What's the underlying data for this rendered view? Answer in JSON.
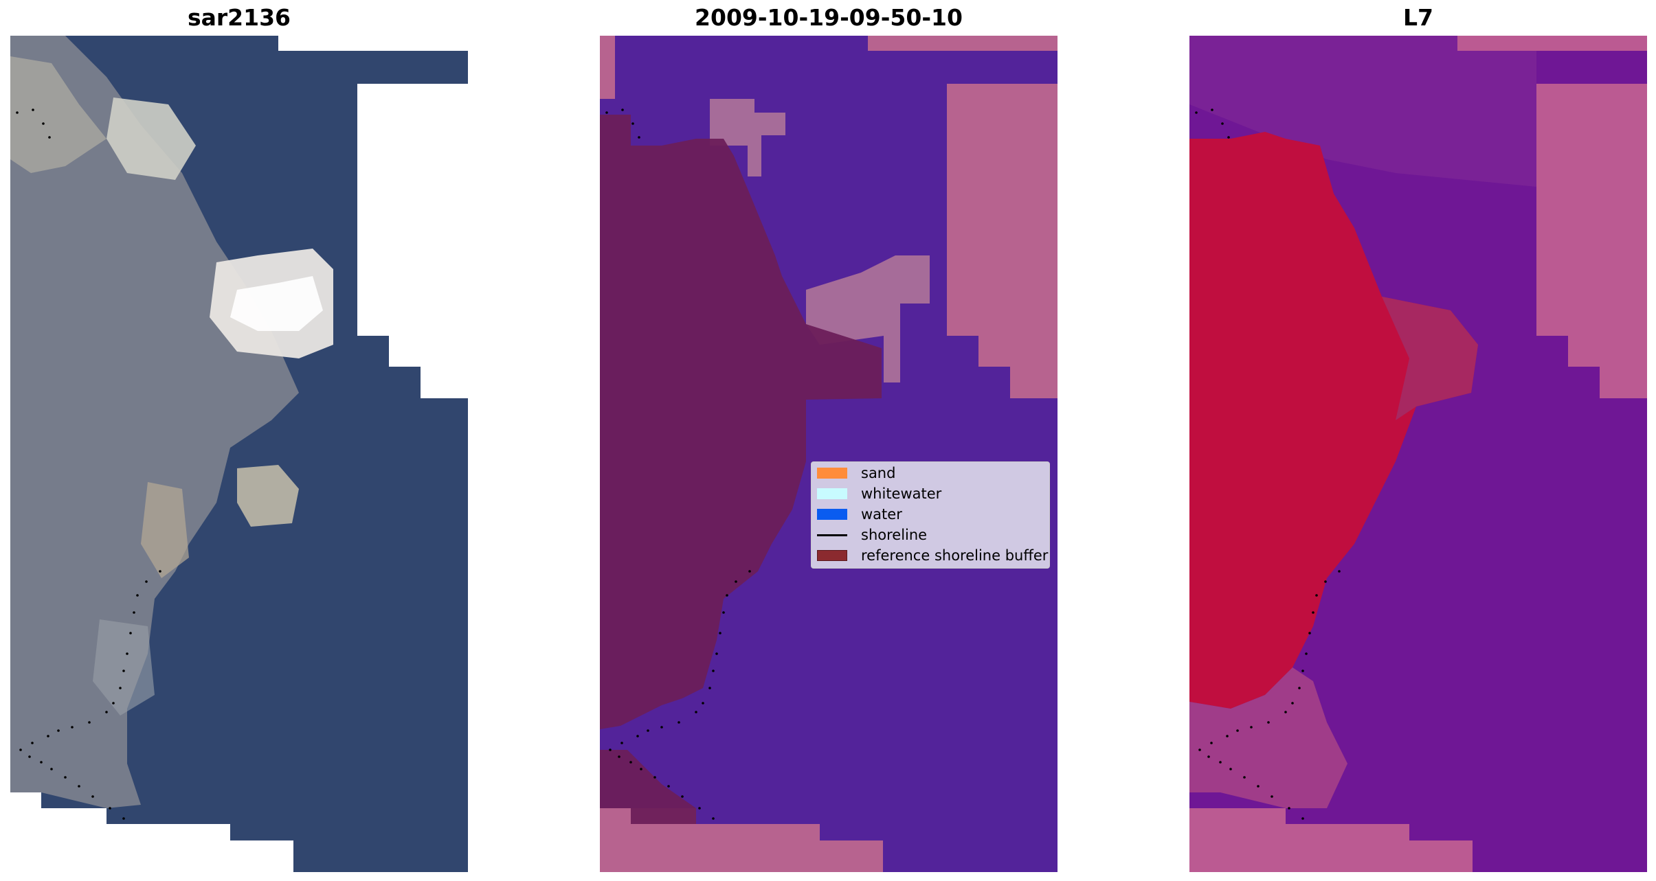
{
  "panels": [
    {
      "title": "sar2136"
    },
    {
      "title": "2009-10-19-09-50-10"
    },
    {
      "title": "L7"
    }
  ],
  "legend": {
    "items": [
      {
        "label": "sand",
        "color": "#ff8c3a"
      },
      {
        "label": "whitewater",
        "color": "#c8fbff"
      },
      {
        "label": "water",
        "color": "#0a5cf0"
      },
      {
        "label": "shoreline",
        "color": "#000000"
      },
      {
        "label": "reference shoreline buffer",
        "color": "#8b2a2f"
      }
    ]
  },
  "colors": {
    "rgb_water": "#31466e",
    "rgb_land": "#7a7f8c",
    "class_water": "#53239a",
    "class_buffer": "#6c1f5a",
    "class_sand": "#b7638f",
    "class_white": "#a66c99",
    "ndwi_land": "#c00e3f",
    "ndwi_water": "#6f1795",
    "ndwi_pink": "#bb5a92"
  }
}
